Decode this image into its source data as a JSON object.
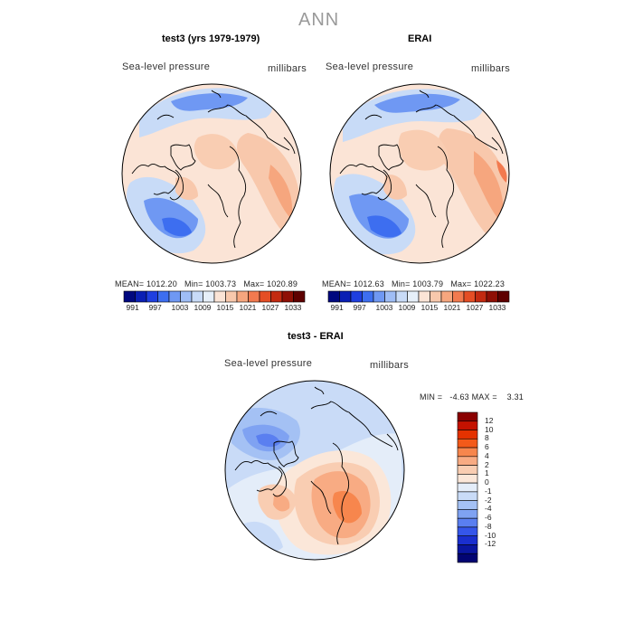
{
  "title": "ANN",
  "panels": [
    {
      "title": "test3 (yrs 1979-1979)",
      "variable": "Sea-level pressure",
      "units": "millibars",
      "stats": {
        "mean_label": "MEAN=",
        "mean": "1012.20",
        "min_label": "Min=",
        "min": "1003.73",
        "max_label": "Max=",
        "max": "1020.89"
      }
    },
    {
      "title": "ERAI",
      "variable": "Sea-level pressure",
      "units": "millibars",
      "stats": {
        "mean_label": "MEAN=",
        "mean": "1012.63",
        "min_label": "Min=",
        "min": "1003.79",
        "max_label": "Max=",
        "max": "1022.23"
      }
    }
  ],
  "colorbar_top": {
    "colors": [
      "#00087f",
      "#0a1fb4",
      "#1f3fe0",
      "#3d6ef0",
      "#6f98f3",
      "#9fbdf5",
      "#c8dbf7",
      "#e6eff9",
      "#fbe4d6",
      "#f8c8ac",
      "#f6a67e",
      "#f27a4f",
      "#e54e25",
      "#c32a10",
      "#8f0f05",
      "#5e0000"
    ],
    "labels": [
      "991",
      "997",
      "1003",
      "1009",
      "1015",
      "1021",
      "1027",
      "1033"
    ]
  },
  "diff_panel": {
    "title": "test3 - ERAI",
    "variable": "Sea-level pressure",
    "units": "millibars",
    "stats": {
      "min_label": "MIN =",
      "min": "-4.63",
      "max_label": "MAX =",
      "max": "3.31"
    }
  },
  "colorbar_diff": {
    "colors": [
      "#8a0000",
      "#c41200",
      "#e43200",
      "#f35a1a",
      "#f7864d",
      "#f8ab83",
      "#f9cdb2",
      "#fbe7d9",
      "#e4edf9",
      "#c9dbf7",
      "#a4c1f4",
      "#7fa2f2",
      "#5a7ff0",
      "#3556ea",
      "#1a2fcf",
      "#0a16a0",
      "#020472"
    ],
    "labels": [
      "12",
      "10",
      "8",
      "6",
      "4",
      "2",
      "1",
      "0",
      "-1",
      "-2",
      "-4",
      "-6",
      "-8",
      "-10",
      "-12"
    ]
  },
  "map_fields": {
    "panel1": [
      {
        "value": "low",
        "color": "#6f98f3",
        "region": "north-pacific"
      },
      {
        "value": "low",
        "color": "#5a7ff0",
        "region": "north-atlantic"
      },
      {
        "value": "high",
        "color": "#f6a67e",
        "region": "siberia"
      }
    ],
    "panel2": [
      {
        "value": "low",
        "color": "#6f98f3",
        "region": "north-pacific"
      },
      {
        "value": "low",
        "color": "#5a7ff0",
        "region": "north-atlantic"
      },
      {
        "value": "high",
        "color": "#f6a67e",
        "region": "siberia"
      }
    ],
    "diff": [
      {
        "value": "negative",
        "color": "#5a7ff0",
        "region": "north-atlantic"
      },
      {
        "value": "positive",
        "color": "#f7864d",
        "region": "central-arctic"
      }
    ]
  }
}
